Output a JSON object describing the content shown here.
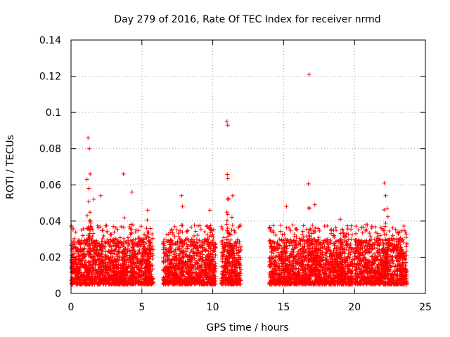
{
  "chart_data": {
    "type": "scatter",
    "title": "Day 279 of 2016, Rate Of TEC Index for receiver nrmd",
    "xlabel": "GPS time / hours",
    "ylabel": "ROTI / TECUs",
    "xlim": [
      0,
      25
    ],
    "ylim": [
      0,
      0.14
    ],
    "grid": true,
    "marker": "+",
    "series_color": "#ff0000",
    "xticks": [
      0,
      5,
      10,
      15,
      20,
      25
    ],
    "xtick_labels": [
      "0",
      "5",
      "10",
      "15",
      "20",
      "25"
    ],
    "yticks": [
      0,
      0.02,
      0.04,
      0.06,
      0.08,
      0.1,
      0.12,
      0.14
    ],
    "ytick_labels": [
      "0",
      "0.02",
      "0.04",
      "0.06",
      "0.08",
      "0.1",
      "0.12",
      "0.14"
    ],
    "data_segments_hours": [
      [
        0,
        5.8
      ],
      [
        6.5,
        10.2
      ],
      [
        10.6,
        12.0
      ],
      [
        14.0,
        19.9
      ],
      [
        20.0,
        23.7
      ]
    ],
    "peaks": [
      {
        "x": 0.15,
        "y": 0.036
      },
      {
        "x": 1.2,
        "y": 0.086
      },
      {
        "x": 1.3,
        "y": 0.08
      },
      {
        "x": 1.35,
        "y": 0.066
      },
      {
        "x": 1.6,
        "y": 0.052
      },
      {
        "x": 2.1,
        "y": 0.054
      },
      {
        "x": 3.7,
        "y": 0.066
      },
      {
        "x": 4.3,
        "y": 0.056
      },
      {
        "x": 5.4,
        "y": 0.046
      },
      {
        "x": 7.8,
        "y": 0.054
      },
      {
        "x": 9.8,
        "y": 0.046
      },
      {
        "x": 11.0,
        "y": 0.095
      },
      {
        "x": 11.05,
        "y": 0.093
      },
      {
        "x": 11.4,
        "y": 0.054
      },
      {
        "x": 15.2,
        "y": 0.048
      },
      {
        "x": 16.8,
        "y": 0.121
      },
      {
        "x": 17.2,
        "y": 0.049
      },
      {
        "x": 19.0,
        "y": 0.041
      },
      {
        "x": 20.8,
        "y": 0.038
      },
      {
        "x": 22.1,
        "y": 0.061
      },
      {
        "x": 22.2,
        "y": 0.054
      },
      {
        "x": 22.3,
        "y": 0.047
      },
      {
        "x": 23.2,
        "y": 0.03
      }
    ],
    "typical_range": [
      0.005,
      0.03
    ]
  }
}
